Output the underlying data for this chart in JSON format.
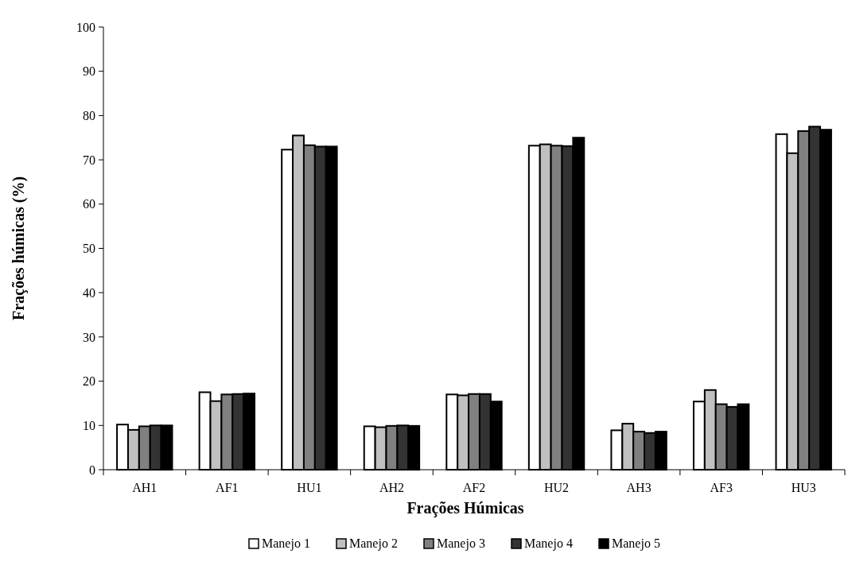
{
  "chart_data": {
    "type": "bar",
    "xlabel": "Frações Húmicas",
    "ylabel": "Frações húmicas (%)",
    "categories": [
      "AH1",
      "AF1",
      "HU1",
      "AH2",
      "AF2",
      "HU2",
      "AH3",
      "AF3",
      "HU3"
    ],
    "series": [
      {
        "name": "Manejo 1",
        "color": "#ffffff",
        "values": [
          10.2,
          17.5,
          72.3,
          9.8,
          17,
          73.2,
          8.9,
          15.4,
          75.8
        ]
      },
      {
        "name": "Manejo 2",
        "color": "#c0c0c0",
        "values": [
          9,
          15.5,
          75.5,
          9.6,
          16.8,
          73.5,
          10.4,
          18,
          71.5
        ]
      },
      {
        "name": "Manejo 3",
        "color": "#808080",
        "values": [
          9.8,
          17,
          73.3,
          9.9,
          17.1,
          73.2,
          8.6,
          14.8,
          76.5
        ]
      },
      {
        "name": "Manejo 4",
        "color": "#333333",
        "values": [
          10,
          17.1,
          73,
          10,
          17.1,
          73.1,
          8.3,
          14.2,
          77.5
        ]
      },
      {
        "name": "Manejo 5",
        "color": "#000000",
        "values": [
          10,
          17.2,
          73,
          9.9,
          15.4,
          75,
          8.6,
          14.8,
          76.8
        ]
      }
    ],
    "ylim": [
      0,
      100
    ],
    "yticks": [
      0,
      10,
      20,
      30,
      40,
      50,
      60,
      70,
      80,
      90,
      100
    ],
    "grid": false,
    "legend": "bottom"
  }
}
